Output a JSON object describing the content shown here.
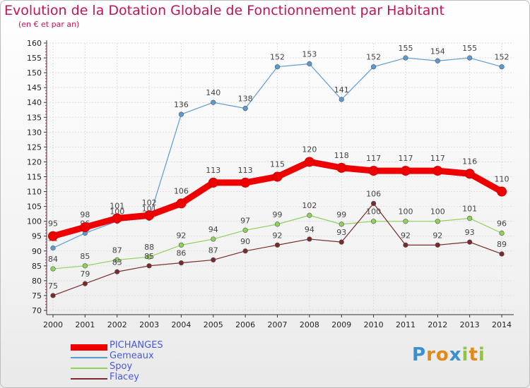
{
  "chart_data": {
    "type": "line",
    "title": "Evolution de la Dotation Globale de Fonctionnement par Habitant",
    "subtitle": "(en € et par an)",
    "categories": [
      "2000",
      "2001",
      "2002",
      "2003",
      "2004",
      "2005",
      "2006",
      "2007",
      "2008",
      "2009",
      "2010",
      "2011",
      "2012",
      "2013",
      "2014"
    ],
    "ylim": [
      70,
      160
    ],
    "ytick_step": 5,
    "grid": true,
    "legend_position": "bottom-left",
    "series": [
      {
        "name": "PICHANGES",
        "color": "#ee0000",
        "values": [
          95,
          98,
          101,
          102,
          106,
          113,
          113,
          115,
          120,
          118,
          117,
          117,
          117,
          116,
          110
        ],
        "emphasis": true
      },
      {
        "name": "Gemeaux",
        "color": "#5b9bd5",
        "values": [
          91,
          96,
          100,
          101,
          136,
          140,
          138,
          152,
          153,
          141,
          152,
          155,
          154,
          155,
          152
        ]
      },
      {
        "name": "Spoy",
        "color": "#8ed25a",
        "values": [
          84,
          85,
          87,
          88,
          92,
          94,
          97,
          99,
          102,
          99,
          100,
          100,
          100,
          101,
          96
        ]
      },
      {
        "name": "Flacey",
        "color": "#7a2a2a",
        "values": [
          75,
          79,
          83,
          85,
          86,
          87,
          90,
          92,
          94,
          93,
          106,
          92,
          92,
          93,
          89
        ]
      }
    ]
  },
  "logo": {
    "letters": [
      {
        "char": "P",
        "color": "#3a8fd0"
      },
      {
        "char": "r",
        "color": "#e08a1a"
      },
      {
        "char": "o",
        "color": "#e08a1a"
      },
      {
        "char": "x",
        "color": "#3a8fd0"
      },
      {
        "char": "i",
        "color": "#8ec63f"
      },
      {
        "char": "t",
        "color": "#e08a1a"
      },
      {
        "char": "i",
        "color": "#8ec63f"
      }
    ]
  }
}
